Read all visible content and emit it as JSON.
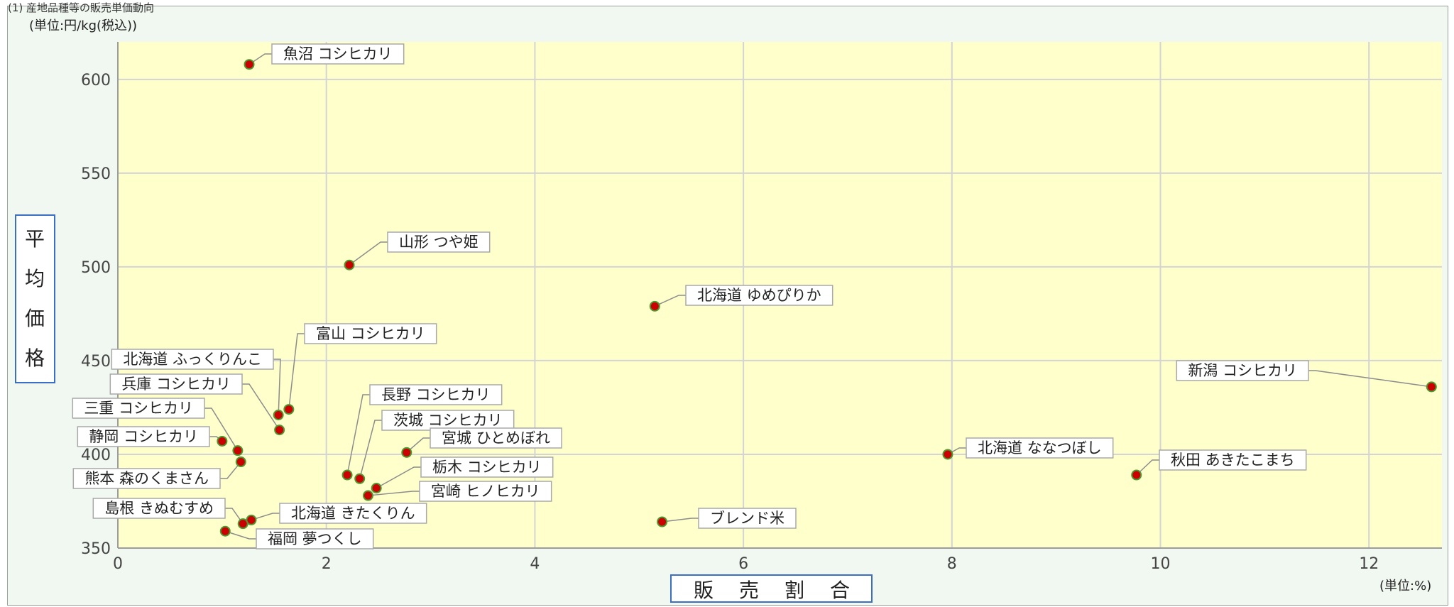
{
  "header_fragment": "(1) 産地品種等の販売単価動向",
  "chart_data": {
    "type": "scatter",
    "title": "",
    "xlabel": "販売割合",
    "ylabel": "平均価格",
    "x_unit": "(単位:%)",
    "y_unit": "(単位:円/kg(税込))",
    "xlim": [
      0,
      12.7
    ],
    "ylim": [
      350,
      620
    ],
    "x_ticks": [
      0,
      2,
      4,
      6,
      8,
      10,
      12
    ],
    "y_ticks": [
      350,
      400,
      450,
      500,
      550,
      600
    ],
    "grid": true,
    "plot_color": "#ffffcc",
    "point_color": "#cc0000",
    "point_edge_color": "#4a9a30",
    "points": [
      {
        "label": "魚沼 コシヒカリ",
        "x": 1.26,
        "y": 608
      },
      {
        "label": "山形 つや姫",
        "x": 2.22,
        "y": 501
      },
      {
        "label": "北海道 ゆめぴりか",
        "x": 5.15,
        "y": 479
      },
      {
        "label": "富山 コシヒカリ",
        "x": 1.64,
        "y": 424
      },
      {
        "label": "北海道 ふっくりんこ",
        "x": 1.54,
        "y": 421
      },
      {
        "label": "兵庫 コシヒカリ",
        "x": 1.55,
        "y": 413
      },
      {
        "label": "新潟 コシヒカリ",
        "x": 12.6,
        "y": 436
      },
      {
        "label": "三重 コシヒカリ",
        "x": 1.15,
        "y": 402
      },
      {
        "label": "静岡 コシヒカリ",
        "x": 1.0,
        "y": 407
      },
      {
        "label": "熊本 森のくまさん",
        "x": 1.18,
        "y": 396
      },
      {
        "label": "長野 コシヒカリ",
        "x": 2.2,
        "y": 389
      },
      {
        "label": "茨城 コシヒカリ",
        "x": 2.32,
        "y": 387
      },
      {
        "label": "宮城 ひとめぼれ",
        "x": 2.77,
        "y": 401
      },
      {
        "label": "栃木 コシヒカリ",
        "x": 2.48,
        "y": 382
      },
      {
        "label": "宮崎 ヒノヒカリ",
        "x": 2.4,
        "y": 378
      },
      {
        "label": "北海道 ななつぼし",
        "x": 7.96,
        "y": 400
      },
      {
        "label": "秋田 あきたこまち",
        "x": 9.77,
        "y": 389
      },
      {
        "label": "ブレンド米",
        "x": 5.22,
        "y": 364
      },
      {
        "label": "島根 きぬむすめ",
        "x": 1.2,
        "y": 363
      },
      {
        "label": "北海道 きたくりん",
        "x": 1.28,
        "y": 365
      },
      {
        "label": "福岡 夢つくし",
        "x": 1.03,
        "y": 359
      }
    ]
  }
}
